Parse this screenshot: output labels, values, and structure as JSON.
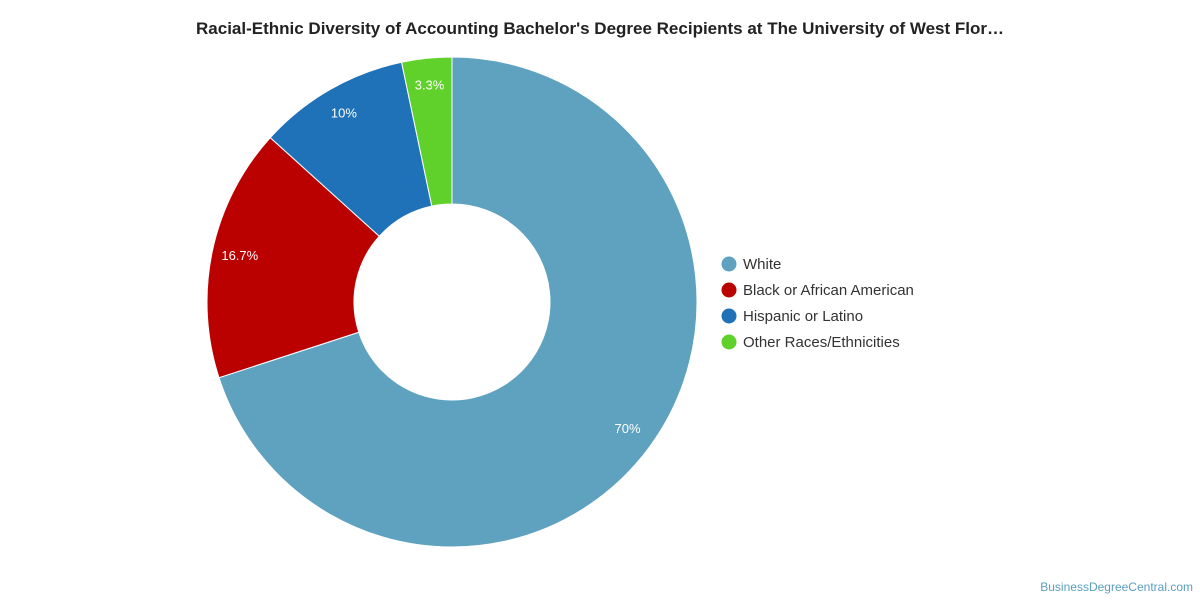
{
  "chart_data": {
    "type": "pie",
    "title": "Racial-Ethnic Diversity of Accounting Bachelor's Degree Recipients at The University of West Flor…",
    "categories": [
      "White",
      "Black or African American",
      "Hispanic or Latino",
      "Other Races/Ethnicities"
    ],
    "values": [
      70,
      16.7,
      10,
      3.3
    ],
    "value_labels": [
      "70%",
      "16.7%",
      "10%",
      "3.3%"
    ],
    "colors": [
      "#5ea2c0",
      "#bb0000",
      "#1f72b8",
      "#5fd12a"
    ],
    "donut": true,
    "legend_position": "right"
  },
  "credit": "BusinessDegreeCentral.com"
}
